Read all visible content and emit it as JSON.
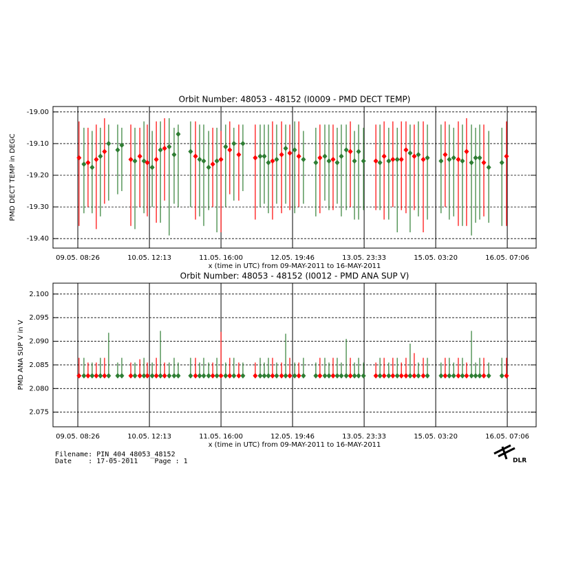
{
  "chart_data": [
    {
      "type": "errorbar-scatter",
      "title": "Orbit Number: 48053 - 48152 (I0009 - PMD DECT TEMP)",
      "x_label": "x (time in UTC) from 09-MAY-2011 to 16-MAY-2011",
      "y_label": "PMD DECT TEMP in DEGC",
      "xlim": [
        -1.2,
        186.3
      ],
      "xticks": [
        {
          "value": 8.43,
          "label": "09.05. 08:26"
        },
        {
          "value": 36.22,
          "label": "10.05. 12:13"
        },
        {
          "value": 64.0,
          "label": "11.05. 16:00"
        },
        {
          "value": 91.77,
          "label": "12.05. 19:46"
        },
        {
          "value": 119.55,
          "label": "13.05. 23:33"
        },
        {
          "value": 147.33,
          "label": "15.05. 03:20"
        },
        {
          "value": 175.1,
          "label": "16.05. 07:06"
        }
      ],
      "ylim": [
        -19.43,
        -18.983
      ],
      "yticks": [
        {
          "value": -19.0,
          "label": "-19.00"
        },
        {
          "value": -19.1,
          "label": "-19.10"
        },
        {
          "value": -19.2,
          "label": "-19.20"
        },
        {
          "value": -19.3,
          "label": "-19.30"
        },
        {
          "value": -19.4,
          "label": "-19.40"
        }
      ],
      "grid": true,
      "series": [
        {
          "color": "#ff0000",
          "x": [
            8.9,
            12.4,
            15.6,
            18.8,
            29.0,
            32.5,
            35.4,
            38.9,
            42.1,
            54.1,
            60.8,
            64.0,
            67.4,
            70.9,
            77.3,
            84.0,
            87.5,
            90.7,
            94.2,
            102.4,
            107.5,
            114.2,
            124.1,
            127.3,
            130.7,
            134.0,
            135.8,
            139.0,
            142.5,
            151.0,
            156.1,
            159.3,
            166.0,
            174.8
          ],
          "values": [
            -19.145,
            -19.16,
            -19.15,
            -19.125,
            -19.15,
            -19.14,
            -19.16,
            -19.15,
            -19.115,
            -19.14,
            -19.165,
            -19.15,
            -19.12,
            -19.135,
            -19.145,
            -19.155,
            -19.135,
            -19.13,
            -19.14,
            -19.145,
            -19.15,
            -19.125,
            -19.155,
            -19.14,
            -19.15,
            -19.15,
            -19.12,
            -19.14,
            -19.15,
            -19.135,
            -19.15,
            -19.125,
            -19.16,
            -19.14
          ],
          "lows": [
            -19.36,
            -19.3,
            -19.37,
            -19.29,
            -19.36,
            -19.3,
            -19.33,
            -19.35,
            -19.28,
            -19.34,
            -19.3,
            -19.38,
            -19.26,
            -19.28,
            -19.34,
            -19.34,
            -19.32,
            -19.31,
            -19.3,
            -19.32,
            -19.31,
            -19.3,
            -19.31,
            -19.34,
            -19.3,
            -19.31,
            -19.32,
            -19.31,
            -19.38,
            -19.3,
            -19.36,
            -19.36,
            -19.33,
            -19.36
          ],
          "highs": [
            -19.03,
            -19.05,
            -19.04,
            -19.02,
            -19.04,
            -19.05,
            -19.04,
            -19.03,
            -19.02,
            -19.03,
            -19.05,
            -19.06,
            -19.03,
            -19.04,
            -19.04,
            -19.03,
            -19.03,
            -19.04,
            -19.03,
            -19.04,
            -19.04,
            -19.03,
            -19.04,
            -19.03,
            -19.03,
            -19.03,
            -19.03,
            -19.04,
            -19.03,
            -19.03,
            -19.03,
            -19.02,
            -19.04,
            -19.03
          ]
        },
        {
          "color": "#2e7d32",
          "x": [
            10.8,
            14.0,
            17.2,
            20.4,
            23.9,
            25.5,
            30.6,
            34.1,
            37.3,
            40.5,
            43.9,
            45.8,
            47.4,
            52.2,
            55.7,
            57.3,
            59.2,
            62.4,
            65.8,
            69.0,
            72.5,
            79.2,
            80.8,
            82.4,
            85.6,
            89.1,
            92.6,
            96.0,
            100.8,
            104.3,
            105.9,
            109.1,
            110.7,
            112.6,
            115.8,
            117.4,
            119.3,
            125.7,
            129.1,
            132.4,
            137.4,
            140.6,
            144.1,
            149.4,
            152.6,
            154.3,
            157.7,
            161.2,
            162.8,
            164.4,
            167.9,
            173.0
          ],
          "values": [
            -19.165,
            -19.175,
            -19.14,
            -19.1,
            -19.12,
            -19.105,
            -19.155,
            -19.155,
            -19.175,
            -19.12,
            -19.11,
            -19.135,
            -19.07,
            -19.125,
            -19.15,
            -19.155,
            -19.175,
            -19.155,
            -19.11,
            -19.1,
            -19.1,
            -19.14,
            -19.14,
            -19.16,
            -19.15,
            -19.115,
            -19.12,
            -19.15,
            -19.16,
            -19.14,
            -19.155,
            -19.16,
            -19.14,
            -19.12,
            -19.155,
            -19.125,
            -19.155,
            -19.16,
            -19.155,
            -19.15,
            -19.13,
            -19.135,
            -19.145,
            -19.155,
            -19.15,
            -19.145,
            -19.155,
            -19.16,
            -19.145,
            -19.145,
            -19.175,
            -19.16
          ],
          "lows": [
            -19.32,
            -19.32,
            -19.33,
            -19.28,
            -19.26,
            -19.25,
            -19.37,
            -19.32,
            -19.3,
            -19.35,
            -19.39,
            -19.29,
            -19.3,
            -19.3,
            -19.33,
            -19.36,
            -19.31,
            -19.38,
            -19.3,
            -19.28,
            -19.25,
            -19.3,
            -19.29,
            -19.32,
            -19.29,
            -19.29,
            -19.32,
            -19.29,
            -19.33,
            -19.28,
            -19.31,
            -19.29,
            -19.33,
            -19.31,
            -19.34,
            -19.34,
            -19.31,
            -19.31,
            -19.34,
            -19.38,
            -19.38,
            -19.33,
            -19.34,
            -19.32,
            -19.34,
            -19.33,
            -19.36,
            -19.39,
            -19.35,
            -19.34,
            -19.35,
            -19.36
          ],
          "highs": [
            -19.05,
            -19.06,
            -19.05,
            -19.04,
            -19.04,
            -19.05,
            -19.05,
            -19.03,
            -19.06,
            -19.03,
            -19.02,
            -19.05,
            -19.04,
            -19.03,
            -19.04,
            -19.04,
            -19.06,
            -19.05,
            -19.04,
            -19.05,
            -19.04,
            -19.04,
            -19.04,
            -19.04,
            -19.04,
            -19.04,
            -19.03,
            -19.06,
            -19.05,
            -19.04,
            -19.04,
            -19.05,
            -19.04,
            -19.04,
            -19.06,
            -19.04,
            -19.05,
            -19.04,
            -19.05,
            -19.05,
            -19.04,
            -19.03,
            -19.04,
            -19.04,
            -19.04,
            -19.05,
            -19.04,
            -19.04,
            -19.05,
            -19.04,
            -19.06,
            -19.05
          ]
        }
      ]
    },
    {
      "type": "errorbar-scatter",
      "title": "Orbit Number: 48053 - 48152 (I0012 - PMD ANA SUP V)",
      "x_label": "x (time in UTC) from 09-MAY-2011 to 16-MAY-2011",
      "y_label": "PMD ANA SUP V in V",
      "xlim": [
        -1.2,
        186.3
      ],
      "xticks": [
        {
          "value": 8.43,
          "label": "09.05. 08:26"
        },
        {
          "value": 36.22,
          "label": "10.05. 12:13"
        },
        {
          "value": 64.0,
          "label": "11.05. 16:00"
        },
        {
          "value": 91.77,
          "label": "12.05. 19:46"
        },
        {
          "value": 119.55,
          "label": "13.05. 23:33"
        },
        {
          "value": 147.33,
          "label": "15.05. 03:20"
        },
        {
          "value": 175.1,
          "label": "16.05. 07:06"
        }
      ],
      "ylim": [
        2.0719,
        2.1023
      ],
      "yticks": [
        2.075,
        {
          "value": 2.08,
          "label": "2.080"
        },
        2.085,
        {
          "value": 2.09,
          "label": "2.090"
        },
        2.095,
        {
          "value": 2.1,
          "label": "2.100"
        }
      ],
      "grid": true,
      "series": [
        {
          "color": "#ff0000",
          "x": [
            8.9,
            12.4,
            15.6,
            18.8,
            29.0,
            32.5,
            35.4,
            38.9,
            42.1,
            54.1,
            60.8,
            64.0,
            67.4,
            70.9,
            77.3,
            84.0,
            87.5,
            90.7,
            94.2,
            102.4,
            107.5,
            114.2,
            124.1,
            127.3,
            130.7,
            134.0,
            135.8,
            139.0,
            142.5,
            151.0,
            156.1,
            159.3,
            166.0,
            174.8
          ],
          "values": [
            2.0827,
            2.0827,
            2.0827,
            2.0827,
            2.0827,
            2.0827,
            2.0827,
            2.0827,
            2.0827,
            2.0827,
            2.0827,
            2.0827,
            2.0827,
            2.0827,
            2.0827,
            2.0827,
            2.0827,
            2.0827,
            2.0827,
            2.0827,
            2.0827,
            2.0827,
            2.0827,
            2.0827,
            2.0827,
            2.0827,
            2.0827,
            2.0827,
            2.0827,
            2.0827,
            2.0827,
            2.0827,
            2.0827,
            2.0827
          ],
          "lows": [
            2.0822,
            2.0822,
            2.0822,
            2.0822,
            2.0822,
            2.0822,
            2.0822,
            2.0822,
            2.0822,
            2.0822,
            2.0822,
            2.0822,
            2.0822,
            2.0822,
            2.0822,
            2.0822,
            2.0822,
            2.0822,
            2.0822,
            2.0822,
            2.0822,
            2.0822,
            2.0822,
            2.0822,
            2.0822,
            2.0822,
            2.0822,
            2.0822,
            2.0822,
            2.0822,
            2.0822,
            2.0822,
            2.0822,
            2.0822
          ],
          "highs": [
            2.0865,
            2.0855,
            2.0855,
            2.0865,
            2.0855,
            2.0862,
            2.0855,
            2.0865,
            2.0855,
            2.0865,
            2.0855,
            2.092,
            2.0865,
            2.0855,
            2.0855,
            2.0865,
            2.0855,
            2.0865,
            2.0855,
            2.0865,
            2.0865,
            2.0865,
            2.0855,
            2.0865,
            2.0865,
            2.0855,
            2.0865,
            2.0875,
            2.0865,
            2.0865,
            2.0865,
            2.0855,
            2.0865,
            2.0865
          ]
        },
        {
          "color": "#2e7d32",
          "x": [
            10.8,
            14.0,
            17.2,
            20.4,
            23.9,
            25.5,
            30.6,
            34.1,
            37.3,
            40.5,
            43.9,
            45.8,
            47.4,
            52.2,
            55.7,
            57.3,
            59.2,
            62.4,
            65.8,
            69.0,
            72.5,
            79.2,
            80.8,
            82.4,
            85.6,
            89.1,
            92.6,
            96.0,
            100.8,
            104.3,
            105.9,
            109.1,
            110.7,
            112.6,
            115.8,
            117.4,
            119.3,
            125.7,
            129.1,
            132.4,
            137.4,
            140.6,
            144.1,
            149.4,
            152.6,
            154.3,
            157.7,
            161.2,
            162.8,
            164.4,
            167.9,
            173.0
          ],
          "values": [
            2.0827,
            2.0827,
            2.0827,
            2.0827,
            2.0827,
            2.0827,
            2.0827,
            2.0827,
            2.0827,
            2.0827,
            2.0827,
            2.0827,
            2.0827,
            2.0827,
            2.0827,
            2.0827,
            2.0827,
            2.0827,
            2.0827,
            2.0827,
            2.0827,
            2.0827,
            2.0827,
            2.0827,
            2.0827,
            2.0827,
            2.0827,
            2.0827,
            2.0827,
            2.0827,
            2.0827,
            2.0827,
            2.0827,
            2.0827,
            2.0827,
            2.0827,
            2.0827,
            2.0827,
            2.0827,
            2.0827,
            2.0827,
            2.0827,
            2.0827,
            2.0827,
            2.0827,
            2.0827,
            2.0827,
            2.0827,
            2.0827,
            2.0827,
            2.0827,
            2.0827
          ],
          "lows": [
            2.0822,
            2.0822,
            2.0822,
            2.0822,
            2.0822,
            2.0822,
            2.0822,
            2.0822,
            2.0822,
            2.0822,
            2.0822,
            2.0822,
            2.0822,
            2.0822,
            2.0822,
            2.0822,
            2.0822,
            2.0822,
            2.0822,
            2.0822,
            2.0822,
            2.0822,
            2.0822,
            2.0822,
            2.0822,
            2.0822,
            2.0822,
            2.0822,
            2.0822,
            2.0822,
            2.0822,
            2.0822,
            2.0822,
            2.0822,
            2.0822,
            2.0822,
            2.0822,
            2.0822,
            2.0822,
            2.0822,
            2.0822,
            2.0822,
            2.0822,
            2.0822,
            2.0822,
            2.0822,
            2.0822,
            2.0822,
            2.0822,
            2.0822,
            2.0822,
            2.0822
          ],
          "highs": [
            2.0865,
            2.0855,
            2.0865,
            2.0918,
            2.0855,
            2.0865,
            2.0855,
            2.0865,
            2.0855,
            2.0922,
            2.0855,
            2.0865,
            2.0855,
            2.0865,
            2.0855,
            2.0865,
            2.0855,
            2.0865,
            2.0855,
            2.0865,
            2.0855,
            2.0865,
            2.0855,
            2.0865,
            2.0855,
            2.0916,
            2.0855,
            2.0865,
            2.0855,
            2.0865,
            2.0855,
            2.0865,
            2.0855,
            2.0905,
            2.0855,
            2.0865,
            2.0855,
            2.0865,
            2.0855,
            2.0865,
            2.0895,
            2.0855,
            2.0865,
            2.0855,
            2.0865,
            2.0855,
            2.0865,
            2.0922,
            2.0855,
            2.0865,
            2.0855,
            2.0865
          ]
        }
      ]
    }
  ],
  "footer": {
    "filename": "Filename: PIN_404_48053_48152",
    "date": "Date    : 17-05-2011    Page : 1",
    "logo": "DLR"
  }
}
